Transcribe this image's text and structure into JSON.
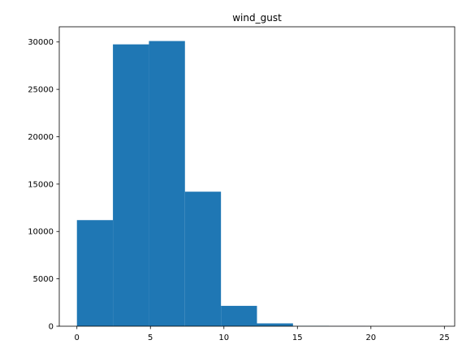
{
  "chart_data": {
    "type": "bar",
    "title": "wind_gust",
    "xlabel": "",
    "ylabel": "",
    "bin_edges": [
      0,
      2.45,
      4.9,
      7.35,
      9.8,
      12.25,
      14.7,
      17.15,
      19.6,
      22.05,
      24.5
    ],
    "values": [
      11200,
      29750,
      30100,
      14200,
      2150,
      300,
      30,
      8,
      3,
      1
    ],
    "xlim": [
      -1.2,
      25.7
    ],
    "ylim": [
      0,
      31605
    ],
    "x_ticks": [
      0,
      5,
      10,
      15,
      20,
      25
    ],
    "y_ticks": [
      0,
      5000,
      10000,
      15000,
      20000,
      25000,
      30000
    ],
    "bar_color": "#1f77b4",
    "grid": false,
    "legend": "none"
  }
}
